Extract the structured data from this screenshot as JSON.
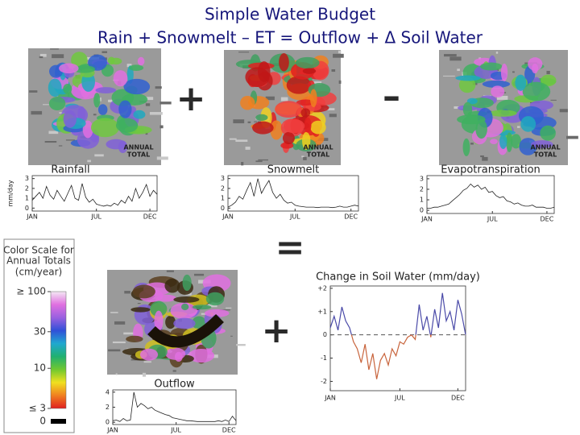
{
  "header": {
    "title": "Simple Water Budget",
    "subtitle": "Rain + Snowmelt – ET = Outflow + Δ Soil Water"
  },
  "operators": [
    "+",
    "–",
    "=",
    "+"
  ],
  "maps": [
    {
      "annotation_lines": [
        "ANNUAL",
        "TOTAL"
      ]
    },
    {
      "annotation_lines": [
        "ANNUAL",
        "TOTAL"
      ]
    },
    {
      "annotation_lines": [
        "ANNUAL",
        "TOTAL"
      ]
    }
  ],
  "legend": {
    "title_lines": [
      "Color Scale for",
      "Annual Totals",
      "(cm/year)"
    ],
    "scale": "log",
    "ticks": [
      {
        "value": 100,
        "label": "≥ 100"
      },
      30,
      10,
      {
        "value": 3,
        "label": "≤ 3"
      },
      0
    ],
    "colors": [
      "#f4e8f4",
      "#e070e0",
      "#9a60e0",
      "#3050d8",
      "#20a8d0",
      "#20b070",
      "#70c830",
      "#f0e020",
      "#f08020",
      "#e02020"
    ],
    "zero_color": "#000000"
  },
  "chart_data": [
    {
      "type": "line",
      "title": "Rainfall",
      "ylabel": "mm/day",
      "color": "#222222",
      "x": [
        0,
        0.33,
        0.67,
        1,
        1.33,
        1.67,
        2,
        2.33,
        2.67,
        3,
        3.33,
        3.67,
        4,
        4.33,
        4.67,
        5,
        5.33,
        5.67,
        6,
        6.33,
        6.67,
        7,
        7.33,
        7.67,
        8,
        8.33,
        8.67,
        9,
        9.33,
        9.67,
        10,
        10.33,
        10.67,
        11,
        11.33,
        11.67
      ],
      "values": [
        0.8,
        1.2,
        1.6,
        1.0,
        2.2,
        1.3,
        0.9,
        1.8,
        1.2,
        0.7,
        1.5,
        2.3,
        1.0,
        0.8,
        2.5,
        1.1,
        0.6,
        0.9,
        0.4,
        0.3,
        0.2,
        0.3,
        0.2,
        0.5,
        0.3,
        0.8,
        0.5,
        1.2,
        0.7,
        2.0,
        1.0,
        1.6,
        2.4,
        1.2,
        1.8,
        1.4
      ],
      "xlim": [
        0,
        11.67
      ],
      "xticks": [
        {
          "value": 0,
          "label": "JAN"
        },
        {
          "value": 6,
          "label": "JUL"
        },
        {
          "value": 11,
          "label": "DEC"
        }
      ],
      "ylim": [
        -0.3,
        3.3
      ],
      "yticks": [
        0,
        1,
        2,
        3
      ]
    },
    {
      "type": "line",
      "title": "Snowmelt",
      "color": "#222222",
      "x": [
        0,
        0.33,
        0.67,
        1,
        1.33,
        1.67,
        2,
        2.33,
        2.67,
        3,
        3.33,
        3.67,
        4,
        4.33,
        4.67,
        5,
        5.33,
        5.67,
        6,
        6.33,
        6.67,
        7,
        7.33,
        7.67,
        8,
        8.33,
        8.67,
        9,
        9.33,
        9.67,
        10,
        10.33,
        10.67,
        11,
        11.33,
        11.67
      ],
      "values": [
        0.1,
        0.3,
        0.6,
        1.2,
        0.9,
        1.8,
        2.6,
        1.2,
        3.0,
        1.5,
        2.2,
        2.8,
        1.6,
        1.0,
        1.4,
        0.8,
        0.5,
        0.6,
        0.3,
        0.2,
        0.15,
        0.1,
        0.1,
        0.1,
        0.05,
        0.1,
        0.1,
        0.1,
        0.05,
        0.1,
        0.2,
        0.1,
        0.1,
        0.2,
        0.3,
        0.2
      ],
      "xlim": [
        0,
        11.67
      ],
      "xticks": [
        {
          "value": 0,
          "label": "JAN"
        },
        {
          "value": 6,
          "label": "JUL"
        },
        {
          "value": 11,
          "label": "DEC"
        }
      ],
      "ylim": [
        -0.3,
        3.3
      ],
      "yticks": [
        0,
        1,
        2,
        3
      ]
    },
    {
      "type": "line",
      "title": "Evapotranspiration",
      "color": "#222222",
      "x": [
        0,
        0.33,
        0.67,
        1,
        1.33,
        1.67,
        2,
        2.33,
        2.67,
        3,
        3.33,
        3.67,
        4,
        4.33,
        4.67,
        5,
        5.33,
        5.67,
        6,
        6.33,
        6.67,
        7,
        7.33,
        7.67,
        8,
        8.33,
        8.67,
        9,
        9.33,
        9.67,
        10,
        10.33,
        10.67,
        11,
        11.33,
        11.67
      ],
      "values": [
        0.2,
        0.2,
        0.3,
        0.3,
        0.4,
        0.5,
        0.6,
        0.9,
        1.2,
        1.5,
        1.9,
        2.1,
        2.5,
        2.2,
        2.4,
        2.0,
        2.2,
        1.7,
        1.8,
        1.4,
        1.2,
        1.3,
        0.9,
        0.8,
        0.6,
        0.7,
        0.5,
        0.4,
        0.4,
        0.5,
        0.3,
        0.3,
        0.3,
        0.2,
        0.2,
        0.3
      ],
      "xlim": [
        0,
        11.67
      ],
      "xticks": [
        {
          "value": 0,
          "label": "JAN"
        },
        {
          "value": 6,
          "label": "JUL"
        },
        {
          "value": 11,
          "label": "DEC"
        }
      ],
      "ylim": [
        -0.3,
        3.3
      ],
      "yticks": [
        0,
        1,
        2,
        3
      ]
    },
    {
      "type": "line",
      "title": "Outflow",
      "color": "#222222",
      "x": [
        0,
        0.33,
        0.67,
        1,
        1.33,
        1.67,
        2,
        2.33,
        2.67,
        3,
        3.33,
        3.67,
        4,
        4.33,
        4.67,
        5,
        5.33,
        5.67,
        6,
        6.33,
        6.67,
        7,
        7.33,
        7.67,
        8,
        8.33,
        8.67,
        9,
        9.33,
        9.67,
        10,
        10.33,
        10.67,
        11,
        11.33,
        11.67
      ],
      "values": [
        0.2,
        0.3,
        0.1,
        0.5,
        0.2,
        0.3,
        4.0,
        2.0,
        2.5,
        2.2,
        1.8,
        2.0,
        1.6,
        1.4,
        1.2,
        1.0,
        0.9,
        0.6,
        0.5,
        0.4,
        0.3,
        0.2,
        0.2,
        0.15,
        0.1,
        0.1,
        0.1,
        0.1,
        0.1,
        0.1,
        0.2,
        0.1,
        0.3,
        0.1,
        0.8,
        0.2
      ],
      "xlim": [
        0,
        11.67
      ],
      "xticks": [
        {
          "value": 0,
          "label": "JAN"
        },
        {
          "value": 6,
          "label": "JUL"
        },
        {
          "value": 11,
          "label": "DEC"
        }
      ],
      "ylim": [
        -0.3,
        4.3
      ],
      "yticks": [
        0,
        2,
        4
      ]
    },
    {
      "type": "signed-line",
      "title": "Change in Soil Water (mm/day)",
      "colors": {
        "positive": "#4a4aa8",
        "negative": "#c8643c"
      },
      "zero_line": true,
      "x": [
        0,
        0.33,
        0.67,
        1,
        1.33,
        1.67,
        2,
        2.33,
        2.67,
        3,
        3.33,
        3.67,
        4,
        4.33,
        4.67,
        5,
        5.33,
        5.67,
        6,
        6.33,
        6.67,
        7,
        7.33,
        7.67,
        8,
        8.33,
        8.67,
        9,
        9.33,
        9.67,
        10,
        10.33,
        10.67,
        11,
        11.33,
        11.67
      ],
      "values": [
        0.3,
        0.8,
        0.2,
        1.2,
        0.6,
        0.3,
        -0.3,
        -0.6,
        -1.2,
        -0.4,
        -1.5,
        -0.8,
        -1.9,
        -1.1,
        -0.8,
        -1.3,
        -0.6,
        -0.9,
        -0.3,
        -0.4,
        -0.1,
        0.0,
        -0.2,
        1.3,
        0.2,
        0.8,
        -0.1,
        1.1,
        0.3,
        1.8,
        0.6,
        1.0,
        0.2,
        1.5,
        0.9,
        0.0
      ],
      "xlim": [
        0,
        11.67
      ],
      "xticks": [
        {
          "value": 0,
          "label": "JAN"
        },
        {
          "value": 6,
          "label": "JUL"
        },
        {
          "value": 11,
          "label": "DEC"
        }
      ],
      "ylim": [
        -2.4,
        2.1
      ],
      "yticks": [
        {
          "value": 2,
          "label": "+2"
        },
        {
          "value": 1,
          "label": "+1"
        },
        0,
        -1,
        -2
      ]
    }
  ]
}
